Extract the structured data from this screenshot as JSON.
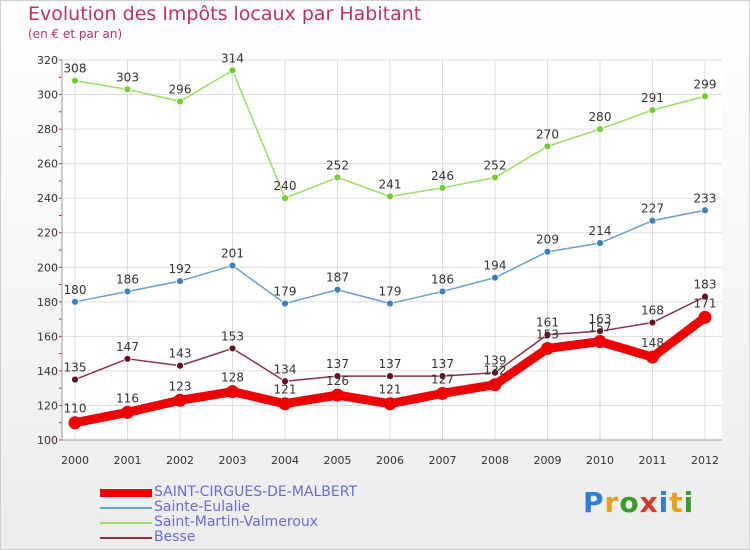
{
  "title": "Evolution des Impôts locaux par Habitant",
  "subtitle": "(en € et par an)",
  "logo": {
    "text": "Proxiti",
    "letter_colors": [
      "#2f7fd6",
      "#e8a018",
      "#3a9a2a",
      "#d63a2a",
      "#2f7fd6",
      "#e8a018",
      "#3a9a2a"
    ]
  },
  "chart_data": {
    "type": "line",
    "x": [
      "2000",
      "2001",
      "2002",
      "2003",
      "2004",
      "2005",
      "2006",
      "2007",
      "2008",
      "2009",
      "2010",
      "2011",
      "2012"
    ],
    "ylim": [
      100,
      320
    ],
    "yticks": [
      100,
      120,
      140,
      160,
      180,
      200,
      220,
      240,
      260,
      280,
      300,
      320
    ],
    "grid": true,
    "legend_position": "bottom-left",
    "series": [
      {
        "name": "SAINT-CIRGUES-DE-MALBERT",
        "color": "#ee0000",
        "marker": "#ee0000",
        "bold": true,
        "values": [
          110,
          116,
          123,
          128,
          121,
          126,
          121,
          127,
          132,
          153,
          157,
          148,
          171
        ]
      },
      {
        "name": "Sainte-Eulalie",
        "color": "#6a9fd0",
        "marker": "#3f7fbf",
        "values": [
          180,
          186,
          192,
          201,
          179,
          187,
          179,
          186,
          194,
          209,
          214,
          227,
          233
        ]
      },
      {
        "name": "Saint-Martin-Valmeroux",
        "color": "#99dd66",
        "marker": "#77cc33",
        "values": [
          308,
          303,
          296,
          314,
          240,
          252,
          241,
          246,
          252,
          270,
          280,
          291,
          299
        ]
      },
      {
        "name": "Besse",
        "color": "#883344",
        "marker": "#661122",
        "values": [
          135,
          147,
          143,
          153,
          134,
          137,
          137,
          137,
          139,
          161,
          163,
          168,
          183
        ]
      }
    ]
  }
}
